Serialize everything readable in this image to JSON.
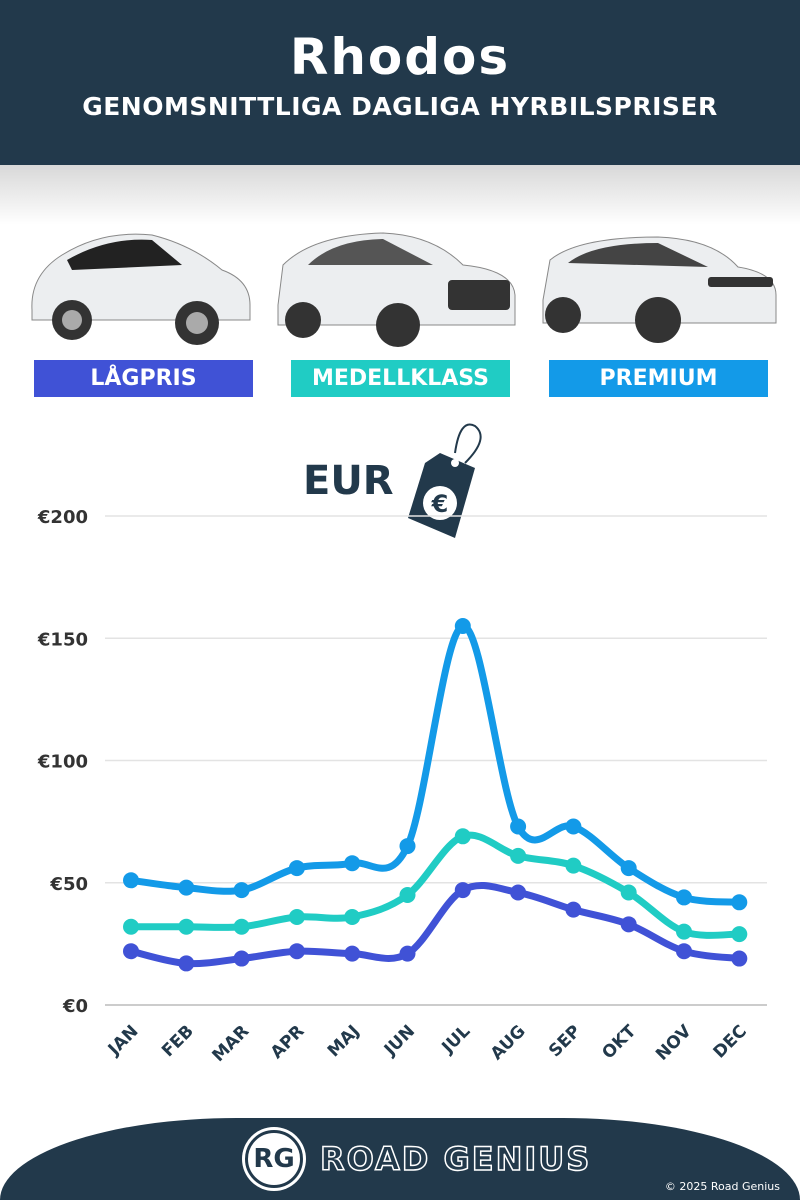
{
  "header": {
    "title": "Rhodos",
    "subtitle": "GENOMSNITTLIGA DAGLIGA HYRBILSPRISER"
  },
  "categories": [
    {
      "label": "LÅGPRIS",
      "color": "#4052d6"
    },
    {
      "label": "MEDELLKLASS",
      "color": "#20ccc4"
    },
    {
      "label": "PREMIUM",
      "color": "#139ae8"
    }
  ],
  "currency": {
    "label": "EUR",
    "symbol": "€",
    "icon": "price-tag-icon"
  },
  "chart_data": {
    "type": "line",
    "categories": [
      "JAN",
      "FEB",
      "MAR",
      "APR",
      "MAJ",
      "JUN",
      "JUL",
      "AUG",
      "SEP",
      "OKT",
      "NOV",
      "DEC"
    ],
    "yticks": [
      "€0",
      "€50",
      "€100",
      "€150",
      "€200"
    ],
    "ylim": [
      0,
      200
    ],
    "grid": true,
    "series": [
      {
        "name": "PREMIUM",
        "color": "#139ae8",
        "values": [
          51,
          48,
          47,
          56,
          58,
          65,
          155,
          73,
          73,
          56,
          44,
          42
        ]
      },
      {
        "name": "MEDELLKLASS",
        "color": "#20ccc4",
        "values": [
          32,
          32,
          32,
          36,
          36,
          45,
          69,
          61,
          57,
          46,
          30,
          29
        ]
      },
      {
        "name": "LÅGPRIS",
        "color": "#4052d6",
        "values": [
          22,
          17,
          19,
          22,
          21,
          21,
          47,
          46,
          39,
          33,
          22,
          19
        ]
      }
    ]
  },
  "footer": {
    "logo": "RG",
    "brand": "ROAD GENIUS",
    "copyright": "© 2025 Road Genius"
  }
}
